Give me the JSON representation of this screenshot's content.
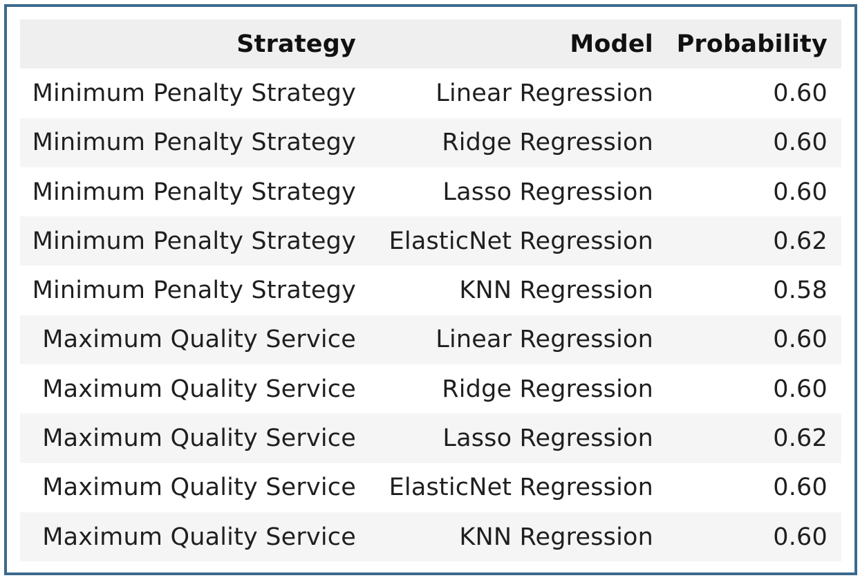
{
  "table": {
    "headers": {
      "strategy": "Strategy",
      "model": "Model",
      "probability": "Probability"
    },
    "rows": [
      {
        "strategy": "Minimum Penalty Strategy",
        "model": "Linear Regression",
        "probability": "0.60"
      },
      {
        "strategy": "Minimum Penalty Strategy",
        "model": "Ridge Regression",
        "probability": "0.60"
      },
      {
        "strategy": "Minimum Penalty Strategy",
        "model": "Lasso Regression",
        "probability": "0.60"
      },
      {
        "strategy": "Minimum Penalty Strategy",
        "model": "ElasticNet Regression",
        "probability": "0.62"
      },
      {
        "strategy": "Minimum Penalty Strategy",
        "model": "KNN Regression",
        "probability": "0.58"
      },
      {
        "strategy": "Maximum Quality Service",
        "model": "Linear Regression",
        "probability": "0.60"
      },
      {
        "strategy": "Maximum Quality Service",
        "model": "Ridge Regression",
        "probability": "0.60"
      },
      {
        "strategy": "Maximum Quality Service",
        "model": "Lasso Regression",
        "probability": "0.62"
      },
      {
        "strategy": "Maximum Quality Service",
        "model": "ElasticNet Regression",
        "probability": "0.60"
      },
      {
        "strategy": "Maximum Quality Service",
        "model": "KNN Regression",
        "probability": "0.60"
      }
    ]
  },
  "colors": {
    "frame_border": "#3c6a8c",
    "header_bg": "#efefef",
    "stripe_bg": "#f5f5f5"
  }
}
